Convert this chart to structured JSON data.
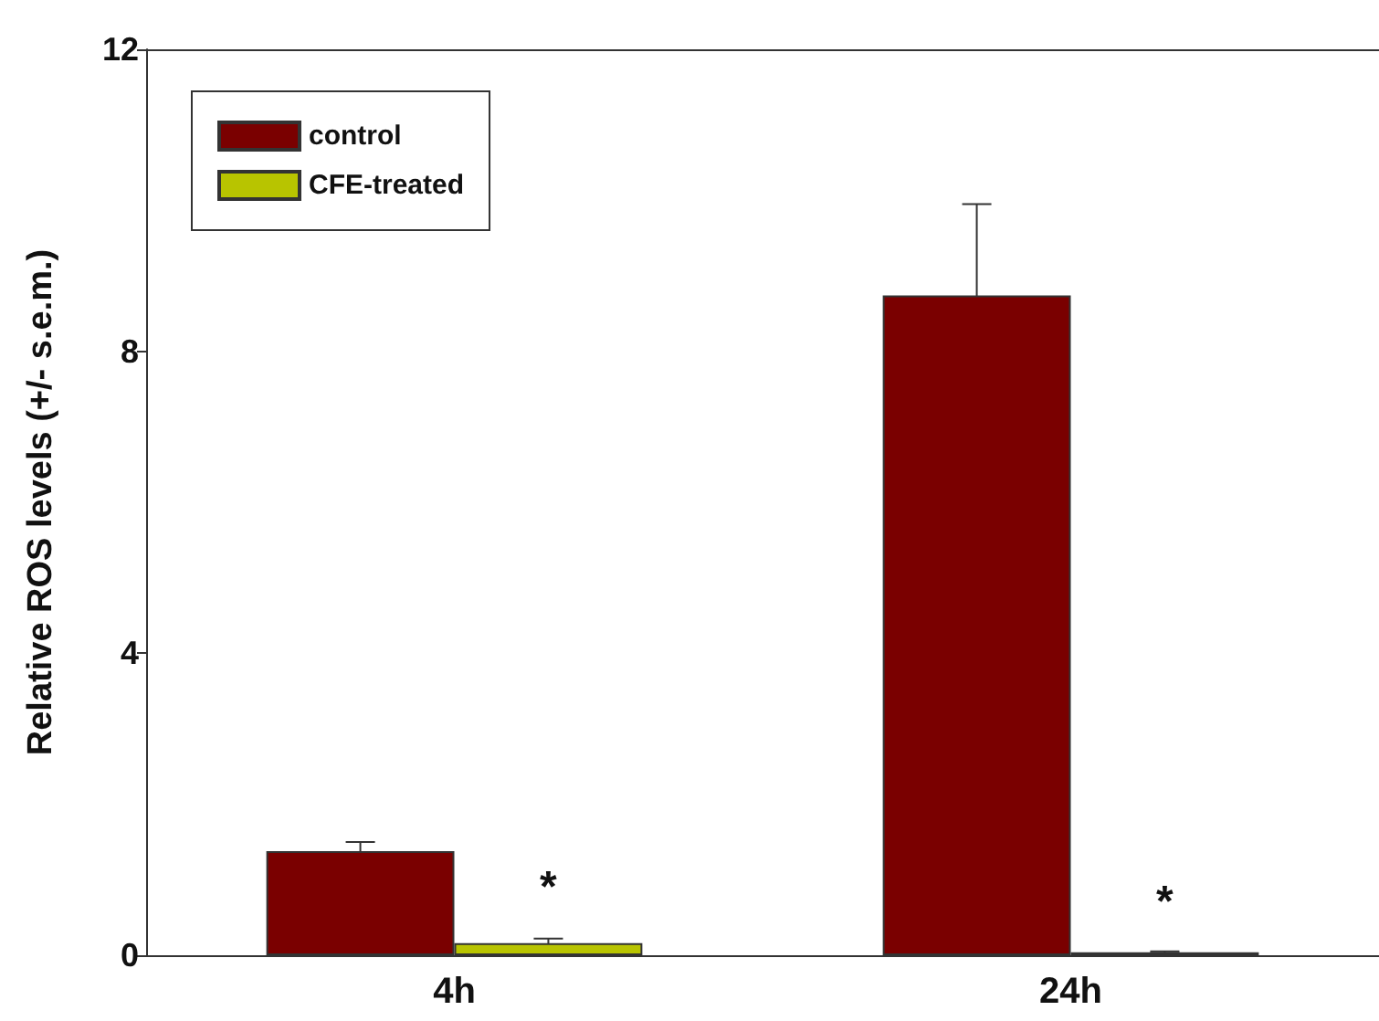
{
  "chart_data": {
    "type": "bar",
    "ylabel": "Relative ROS levels (+/- s.e.m.)",
    "categories": [
      "4h",
      "24h"
    ],
    "series": [
      {
        "name": "control",
        "color": "#7a0000",
        "values": [
          1.38,
          8.74
        ],
        "errors": [
          0.12,
          1.21
        ]
      },
      {
        "name": "CFE-treated",
        "color": "#b8c400",
        "values": [
          0.16,
          0.04
        ],
        "errors": [
          0.06,
          0.01
        ]
      }
    ],
    "ylim": [
      0,
      12
    ],
    "yticks": [
      0,
      4,
      8,
      12
    ],
    "legend": "top left",
    "grid": false,
    "annotations": [
      {
        "text": "*",
        "x": "4h",
        "y": 0.9
      },
      {
        "text": "*",
        "x": "24h",
        "y": 0.7
      }
    ]
  }
}
